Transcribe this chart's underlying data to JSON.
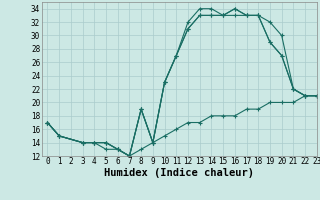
{
  "xlabel": "Humidex (Indice chaleur)",
  "xlim": [
    -0.5,
    23
  ],
  "ylim": [
    12,
    35
  ],
  "xticks": [
    0,
    1,
    2,
    3,
    4,
    5,
    6,
    7,
    8,
    9,
    10,
    11,
    12,
    13,
    14,
    15,
    16,
    17,
    18,
    19,
    20,
    21,
    22,
    23
  ],
  "yticks": [
    12,
    14,
    16,
    18,
    20,
    22,
    24,
    26,
    28,
    30,
    32,
    34
  ],
  "bg_color": "#cce8e4",
  "grid_color": "#aacccc",
  "line_color": "#1a6e64",
  "curves": [
    {
      "x": [
        0,
        1,
        3,
        4,
        5,
        6,
        7,
        8,
        9,
        10,
        11,
        12,
        13,
        14,
        15,
        16,
        17,
        18,
        19,
        20,
        21,
        22,
        23
      ],
      "y": [
        17,
        15,
        14,
        14,
        14,
        13,
        12,
        19,
        14,
        23,
        27,
        32,
        34,
        34,
        33,
        34,
        33,
        33,
        32,
        30,
        22,
        21,
        21
      ]
    },
    {
      "x": [
        0,
        1,
        3,
        4,
        5,
        6,
        7,
        8,
        9,
        10,
        11,
        12,
        13,
        14,
        15,
        16,
        17,
        18,
        19,
        20,
        21,
        22,
        23
      ],
      "y": [
        17,
        15,
        14,
        14,
        14,
        13,
        12,
        19,
        14,
        23,
        27,
        31,
        33,
        33,
        33,
        34,
        33,
        33,
        29,
        27,
        22,
        21,
        21
      ]
    },
    {
      "x": [
        0,
        1,
        3,
        4,
        5,
        6,
        7,
        8,
        9,
        10,
        11,
        12,
        13,
        14,
        15,
        16,
        17,
        18,
        19,
        20,
        21,
        22,
        23
      ],
      "y": [
        17,
        15,
        14,
        14,
        14,
        13,
        12,
        19,
        14,
        23,
        27,
        31,
        33,
        33,
        33,
        33,
        33,
        33,
        29,
        27,
        22,
        21,
        21
      ]
    },
    {
      "x": [
        0,
        1,
        3,
        4,
        5,
        6,
        7,
        8,
        9,
        10,
        11,
        12,
        13,
        14,
        15,
        16,
        17,
        18,
        19,
        20,
        21,
        22,
        23
      ],
      "y": [
        17,
        15,
        14,
        14,
        13,
        13,
        12,
        13,
        14,
        15,
        16,
        17,
        17,
        18,
        18,
        18,
        19,
        19,
        20,
        20,
        20,
        21,
        21
      ]
    }
  ],
  "figsize": [
    3.2,
    2.0
  ],
  "dpi": 100,
  "tick_fontsize": 5.5,
  "label_fontsize": 7.5
}
